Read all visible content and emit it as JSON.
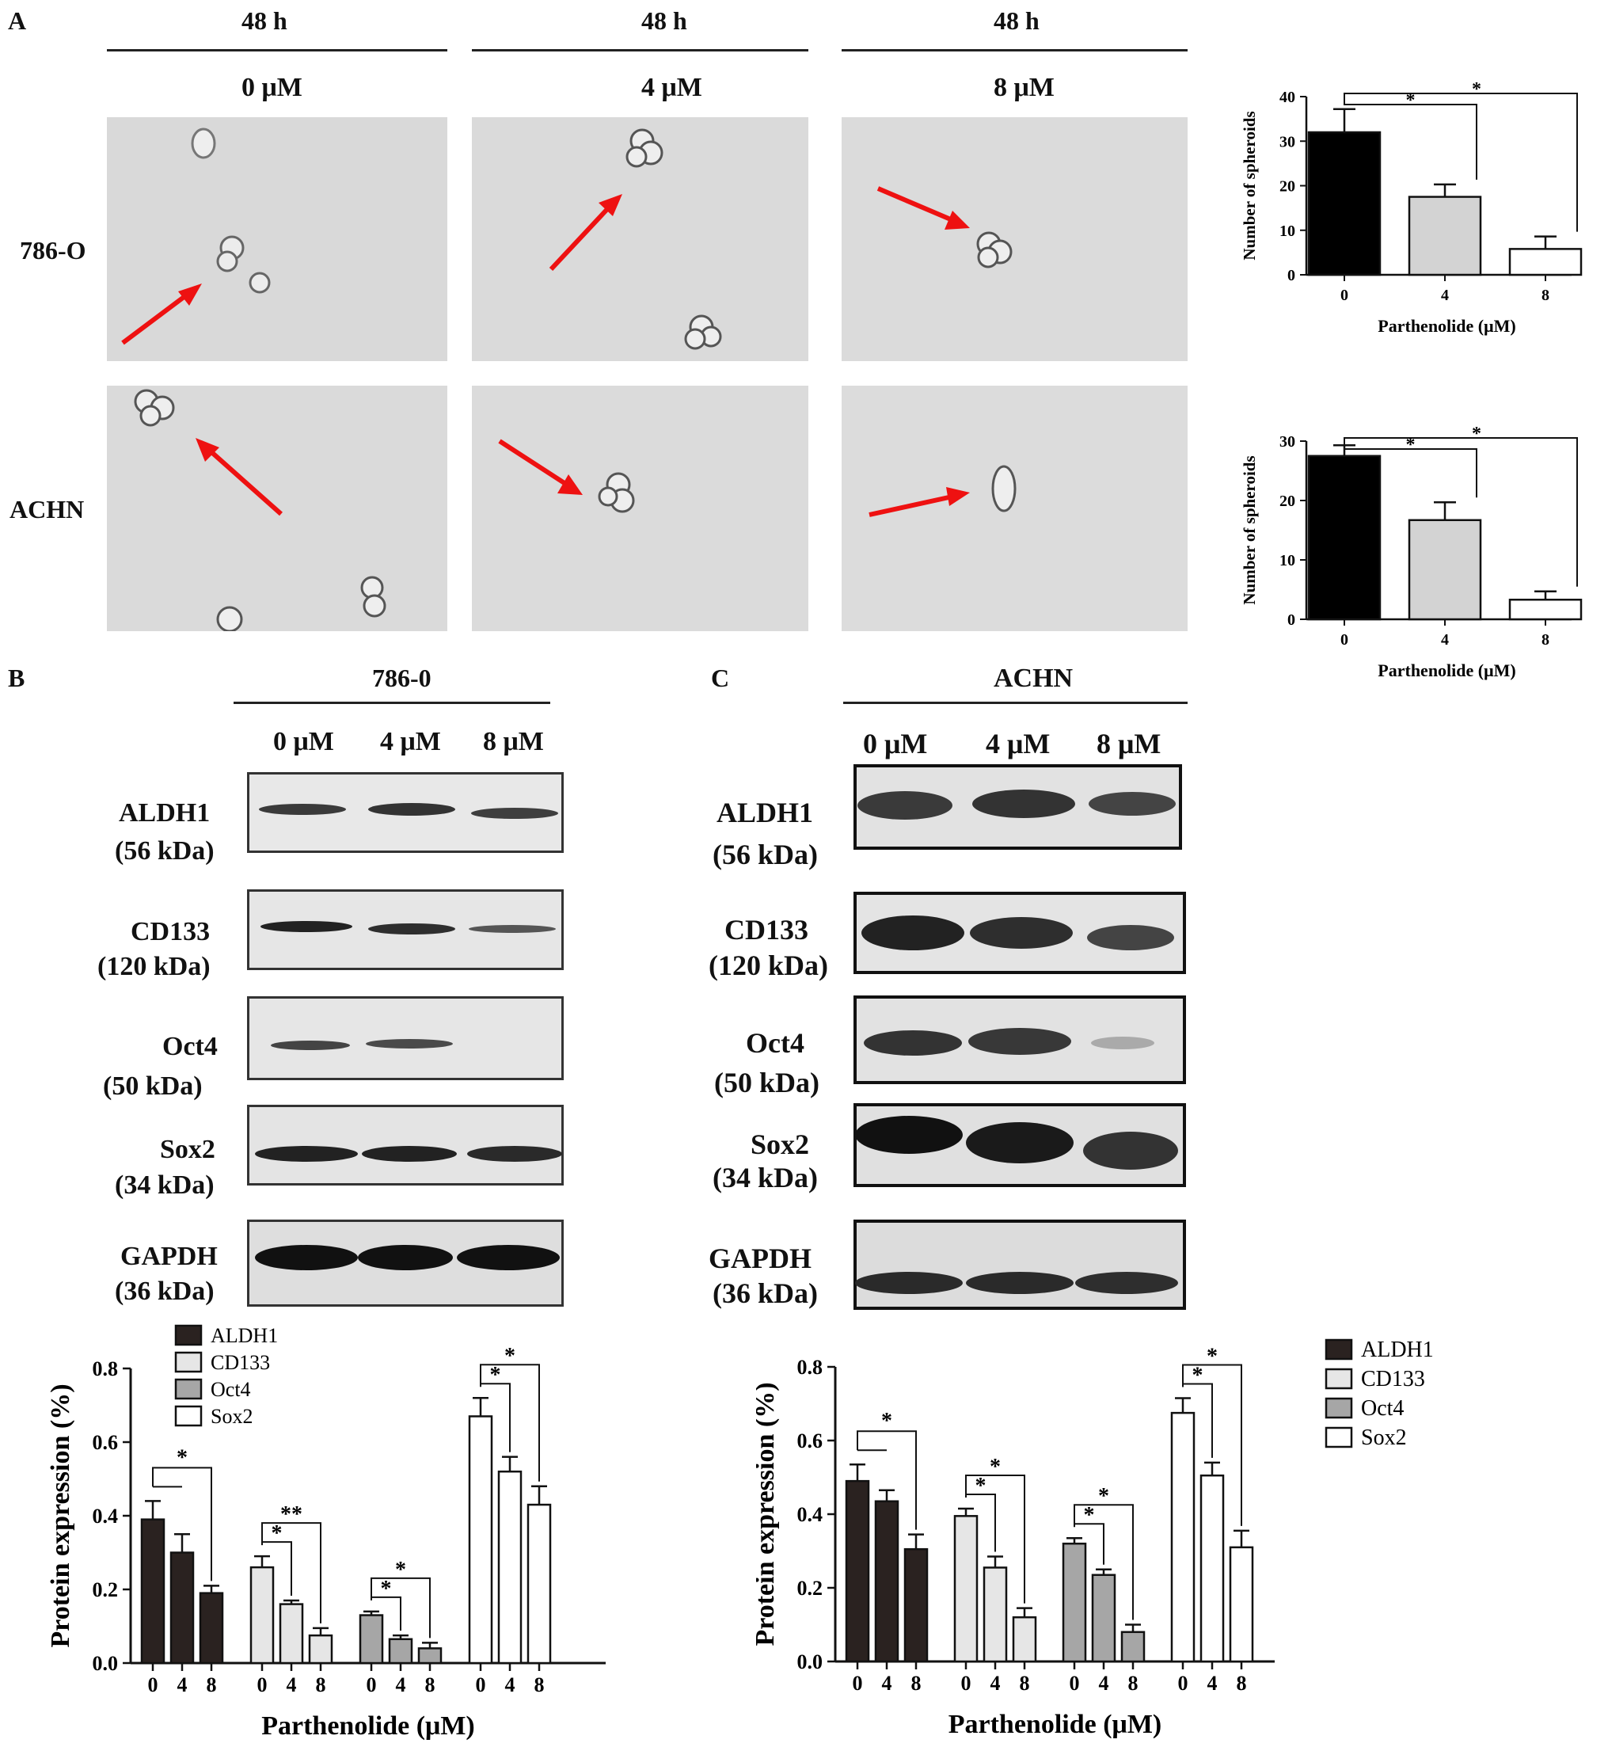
{
  "panel_labels": {
    "a": "A",
    "b": "B",
    "c": "C"
  },
  "panel_a": {
    "time_labels": [
      "48 h",
      "48 h",
      "48 h"
    ],
    "dose_labels": [
      "0 μM",
      "4 μM",
      "8 μM"
    ],
    "row_labels": [
      "786-O",
      "ACHN"
    ]
  },
  "panel_b": {
    "cell_line": "786-0",
    "dose_labels": [
      "0 μM",
      "4 μM",
      "8 μM"
    ],
    "blots": [
      {
        "name": "ALDH1",
        "weight": "(56 kDa)"
      },
      {
        "name": "CD133",
        "weight": "(120 kDa)"
      },
      {
        "name": "Oct4",
        "weight": "(50 kDa)"
      },
      {
        "name": "Sox2",
        "weight": "(34 kDa)"
      },
      {
        "name": "GAPDH",
        "weight": "(36 kDa)"
      }
    ]
  },
  "panel_c": {
    "cell_line": "ACHN",
    "dose_labels": [
      "0 μM",
      "4 μM",
      "8 μM"
    ],
    "blots": [
      {
        "name": "ALDH1",
        "weight": "(56 kDa)"
      },
      {
        "name": "CD133",
        "weight": "(120 kDa)"
      },
      {
        "name": "Oct4",
        "weight": "(50 kDa)"
      },
      {
        "name": "Sox2",
        "weight": "(34 kDa)"
      },
      {
        "name": "GAPDH",
        "weight": "(36 kDa)"
      }
    ]
  },
  "chart_data": [
    {
      "type": "bar",
      "panel": "A-786-O",
      "categories": [
        "0",
        "4",
        "8"
      ],
      "values": [
        32,
        17.5,
        5.8
      ],
      "errors": [
        5.2,
        2.8,
        2.8
      ],
      "colors": [
        "#000000",
        "#d3d3d3",
        "#ffffff"
      ],
      "xlabel": "Parthenolide (μM)",
      "ylabel": "Number of spheroids",
      "ylim": [
        0,
        40
      ],
      "yticks": [
        0,
        10,
        20,
        30,
        40
      ],
      "significance": [
        "*",
        "*"
      ]
    },
    {
      "type": "bar",
      "panel": "A-ACHN",
      "categories": [
        "0",
        "4",
        "8"
      ],
      "values": [
        27.5,
        16.7,
        3.3
      ],
      "errors": [
        1.8,
        3,
        1.4
      ],
      "colors": [
        "#000000",
        "#d3d3d3",
        "#ffffff"
      ],
      "xlabel": "Parthenolide (μM)",
      "ylabel": "Number of spheroids",
      "ylim": [
        0,
        30
      ],
      "yticks": [
        0,
        10,
        20,
        30
      ],
      "significance": [
        "*",
        "*"
      ]
    },
    {
      "type": "bar",
      "panel": "B",
      "categories": [
        "0",
        "4",
        "8"
      ],
      "series": [
        {
          "name": "ALDH1",
          "color": "#2a2220",
          "values": [
            0.39,
            0.3,
            0.19
          ],
          "errors": [
            0.05,
            0.05,
            0.02
          ]
        },
        {
          "name": "CD133",
          "color": "#e6e6e6",
          "values": [
            0.26,
            0.16,
            0.075
          ],
          "errors": [
            0.03,
            0.01,
            0.02
          ]
        },
        {
          "name": "Oct4",
          "color": "#a6a6a6",
          "values": [
            0.13,
            0.065,
            0.04
          ],
          "errors": [
            0.01,
            0.01,
            0.015
          ]
        },
        {
          "name": "Sox2",
          "color": "#ffffff",
          "values": [
            0.67,
            0.52,
            0.43
          ],
          "errors": [
            0.05,
            0.04,
            0.05
          ]
        }
      ],
      "significance": [
        [
          "*"
        ],
        [
          "*",
          "**"
        ],
        [
          "*",
          "*"
        ],
        [
          "*",
          "*"
        ]
      ],
      "xlabel": "Parthenolide (μM)",
      "ylabel": "Protein expression (%)",
      "ylim": [
        0,
        0.8
      ],
      "yticks": [
        0.0,
        0.2,
        0.4,
        0.6,
        0.8
      ],
      "legend": "top-left"
    },
    {
      "type": "bar",
      "panel": "C",
      "categories": [
        "0",
        "4",
        "8"
      ],
      "series": [
        {
          "name": "ALDH1",
          "color": "#2a2220",
          "values": [
            0.49,
            0.435,
            0.305
          ],
          "errors": [
            0.045,
            0.03,
            0.04
          ]
        },
        {
          "name": "CD133",
          "color": "#e6e6e6",
          "values": [
            0.395,
            0.255,
            0.12
          ],
          "errors": [
            0.02,
            0.03,
            0.025
          ]
        },
        {
          "name": "Oct4",
          "color": "#a6a6a6",
          "values": [
            0.32,
            0.235,
            0.08
          ],
          "errors": [
            0.015,
            0.015,
            0.02
          ]
        },
        {
          "name": "Sox2",
          "color": "#ffffff",
          "values": [
            0.675,
            0.505,
            0.31
          ],
          "errors": [
            0.04,
            0.035,
            0.045
          ]
        }
      ],
      "significance": [
        [
          "*"
        ],
        [
          "*",
          "*"
        ],
        [
          "*",
          "*"
        ],
        [
          "*",
          "*"
        ]
      ],
      "xlabel": "Parthenolide (μM)",
      "ylabel": "Protein expression (%)",
      "ylim": [
        0,
        0.8
      ],
      "yticks": [
        0.0,
        0.2,
        0.4,
        0.6,
        0.8
      ],
      "legend": "top-right"
    }
  ]
}
